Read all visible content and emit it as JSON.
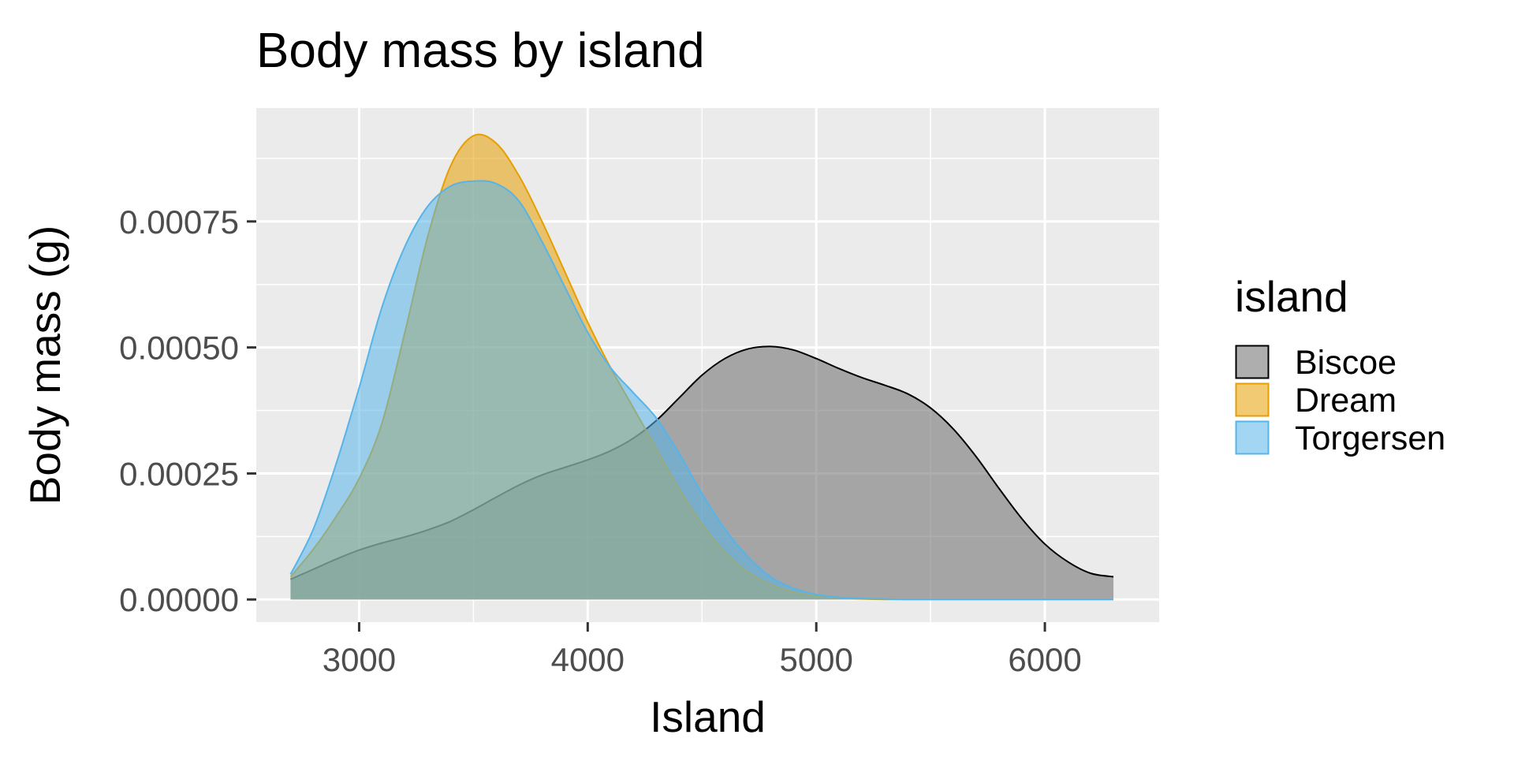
{
  "chart_data": {
    "type": "area",
    "subtype": "density",
    "title": "Body mass by island",
    "xlabel": "Island",
    "ylabel": "Body mass (g)",
    "xlim": [
      2550,
      6500
    ],
    "ylim": [
      -4.5e-05,
      0.000975
    ],
    "x_ticks": [
      3000,
      4000,
      5000,
      6000
    ],
    "x_tick_labels": [
      "3000",
      "4000",
      "5000",
      "6000"
    ],
    "y_ticks": [
      0,
      0.00025,
      0.0005,
      0.00075
    ],
    "y_tick_labels": [
      "0.00000",
      "0.00025",
      "0.00050",
      "0.00075"
    ],
    "grid": true,
    "legend": {
      "title": "island",
      "placement": "right"
    },
    "x": [
      2700,
      2800,
      2900,
      3000,
      3100,
      3200,
      3300,
      3400,
      3500,
      3600,
      3700,
      3800,
      3900,
      4000,
      4100,
      4200,
      4300,
      4400,
      4500,
      4600,
      4700,
      4800,
      4900,
      5000,
      5100,
      5200,
      5300,
      5400,
      5500,
      5600,
      5700,
      5800,
      5900,
      6000,
      6100,
      6200,
      6300
    ],
    "series": [
      {
        "name": "Biscoe",
        "color": "#000000",
        "fill": "#6b6b6b",
        "values": [
          4e-05,
          6e-05,
          8e-05,
          9.8e-05,
          0.000112,
          0.000124,
          0.000138,
          0.000155,
          0.000178,
          0.000203,
          0.000227,
          0.000247,
          0.000262,
          0.000277,
          0.000295,
          0.00032,
          0.000355,
          0.0004,
          0.000445,
          0.000478,
          0.000497,
          0.000502,
          0.000495,
          0.000478,
          0.000458,
          0.00044,
          0.000425,
          0.000408,
          0.00038,
          0.000338,
          0.000283,
          0.00022,
          0.00016,
          0.00011,
          7.5e-05,
          5.2e-05,
          4.5e-05
        ]
      },
      {
        "name": "Dream",
        "color": "#e69f00",
        "fill": "#e69f00",
        "values": [
          4.5e-05,
          0.0001,
          0.000165,
          0.00024,
          0.00035,
          0.00053,
          0.00072,
          0.00086,
          0.00092,
          0.000905,
          0.00084,
          0.00075,
          0.00065,
          0.00055,
          0.00046,
          0.00038,
          0.0003,
          0.00022,
          0.00015,
          9.5e-05,
          5.5e-05,
          3e-05,
          1.5e-05,
          7e-06,
          3e-06,
          1e-06,
          0,
          0,
          0,
          0,
          0,
          0,
          0,
          0,
          0,
          0,
          0
        ]
      },
      {
        "name": "Torgersen",
        "color": "#56b4e9",
        "fill": "#56b4e9",
        "values": [
          5e-05,
          0.00014,
          0.00027,
          0.00042,
          0.00058,
          0.0007,
          0.00078,
          0.00082,
          0.00083,
          0.000825,
          0.00079,
          0.00071,
          0.00062,
          0.00053,
          0.00046,
          0.00041,
          0.00036,
          0.00029,
          0.00021,
          0.00014,
          8.5e-05,
          4.5e-05,
          2.2e-05,
          1e-05,
          4e-06,
          2e-06,
          1e-06,
          0,
          0,
          0,
          0,
          0,
          0,
          0,
          0,
          0,
          0
        ]
      }
    ]
  }
}
